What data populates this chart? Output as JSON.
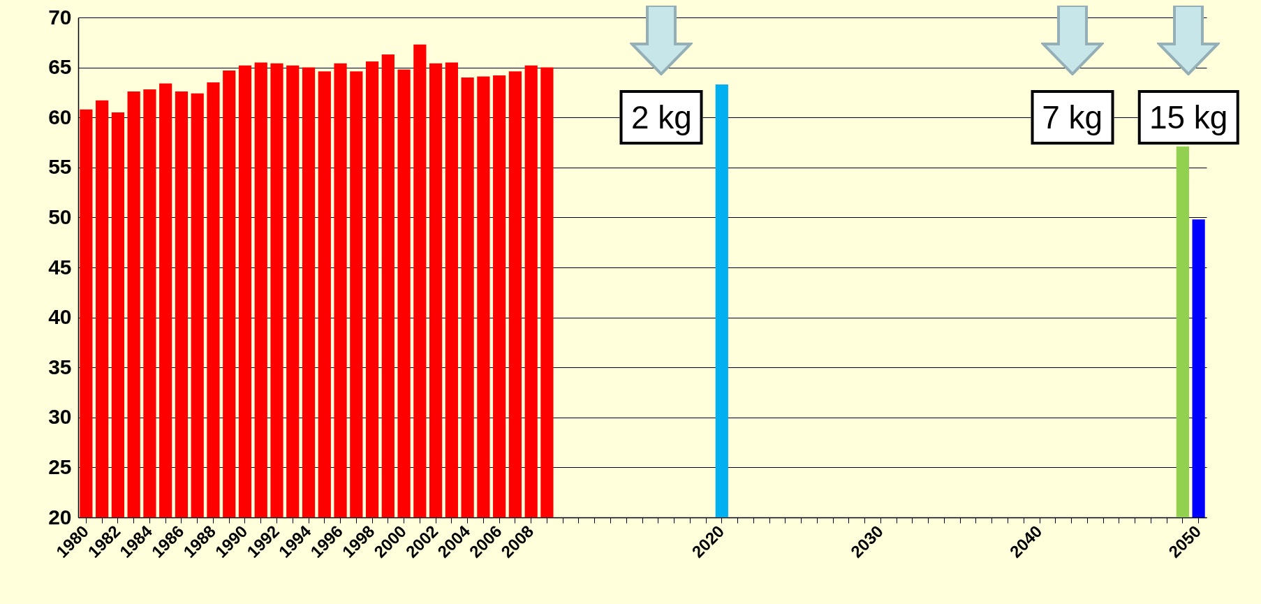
{
  "chart_data": {
    "type": "bar",
    "categories": [
      "1980",
      null,
      "1982",
      null,
      "1984",
      null,
      "1986",
      null,
      "1988",
      null,
      "1990",
      null,
      "1992",
      null,
      "1994",
      null,
      "1996",
      null,
      "1998",
      null,
      "2000",
      null,
      "2002",
      null,
      "2004",
      null,
      "2006",
      null,
      "2008",
      null,
      null,
      null,
      null,
      null,
      null,
      null,
      null,
      null,
      null,
      null,
      "2020",
      null,
      null,
      null,
      null,
      null,
      null,
      null,
      null,
      null,
      "2030",
      null,
      null,
      null,
      null,
      null,
      null,
      null,
      null,
      null,
      "2040",
      null,
      null,
      null,
      null,
      null,
      null,
      null,
      null,
      null,
      "2050"
    ],
    "values": [
      60.8,
      61.7,
      60.5,
      62.6,
      62.8,
      63.4,
      62.6,
      62.4,
      63.5,
      64.7,
      65.2,
      65.5,
      65.4,
      65.2,
      65.0,
      64.6,
      65.4,
      64.6,
      65.6,
      66.3,
      64.8,
      67.3,
      65.4,
      65.5,
      64.0,
      64.1,
      64.2,
      64.6,
      65.2,
      65.0,
      null,
      null,
      null,
      null,
      null,
      null,
      null,
      null,
      null,
      null,
      63.3,
      null,
      null,
      null,
      null,
      null,
      null,
      null,
      null,
      null,
      null,
      null,
      null,
      null,
      null,
      null,
      null,
      null,
      null,
      null,
      null,
      null,
      null,
      null,
      null,
      null,
      null,
      null,
      null,
      57.1,
      49.8
    ],
    "colors": [
      "#ff0000",
      "#ff0000",
      "#ff0000",
      "#ff0000",
      "#ff0000",
      "#ff0000",
      "#ff0000",
      "#ff0000",
      "#ff0000",
      "#ff0000",
      "#ff0000",
      "#ff0000",
      "#ff0000",
      "#ff0000",
      "#ff0000",
      "#ff0000",
      "#ff0000",
      "#ff0000",
      "#ff0000",
      "#ff0000",
      "#ff0000",
      "#ff0000",
      "#ff0000",
      "#ff0000",
      "#ff0000",
      "#ff0000",
      "#ff0000",
      "#ff0000",
      "#ff0000",
      "#ff0000",
      null,
      null,
      null,
      null,
      null,
      null,
      null,
      null,
      null,
      null,
      "#00b0f0",
      null,
      null,
      null,
      null,
      null,
      null,
      null,
      null,
      null,
      null,
      null,
      null,
      null,
      null,
      null,
      null,
      null,
      null,
      null,
      null,
      null,
      null,
      null,
      null,
      null,
      null,
      null,
      null,
      "#92d050",
      "#0000ff"
    ],
    "ylim": [
      20,
      70
    ],
    "yticks": [
      20,
      25,
      30,
      35,
      40,
      45,
      50,
      55,
      60,
      65,
      70
    ],
    "grid": "y",
    "annotations": [
      "2 kg",
      "7 kg",
      "15 kg"
    ]
  }
}
